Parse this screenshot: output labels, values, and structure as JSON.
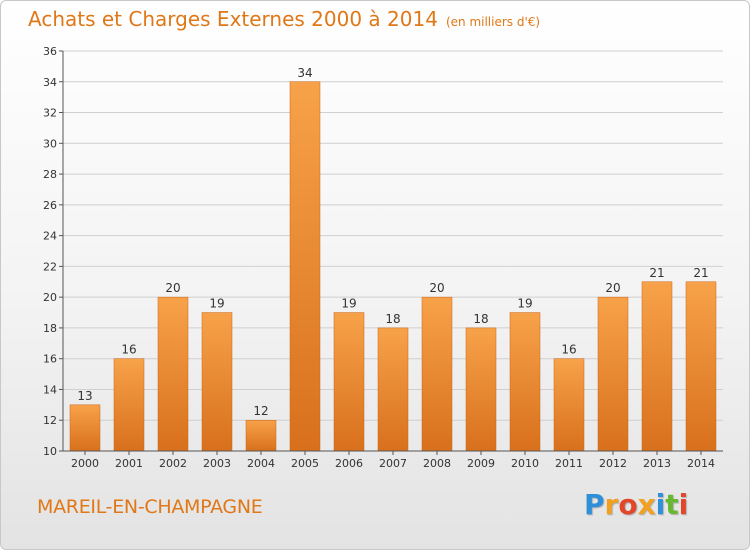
{
  "header": {
    "title": "Achats et Charges Externes 2000 à 2014",
    "unit": "(en milliers d'€)"
  },
  "footer": {
    "commune": "MAREIL-EN-CHAMPAGNE",
    "logo_letters": [
      "P",
      "r",
      "o",
      "x",
      "i",
      "t",
      "i"
    ],
    "logo_colors": [
      "#2f8fd8",
      "#f2a020",
      "#e2472a",
      "#f2a020",
      "#2f8fd8",
      "#66b830",
      "#e2472a"
    ]
  },
  "chart_data": {
    "type": "bar",
    "title": "Achats et Charges Externes 2000 à 2014",
    "subtitle": "(en milliers d'€)",
    "xlabel": "",
    "ylabel": "",
    "categories": [
      "2000",
      "2001",
      "2002",
      "2003",
      "2004",
      "2005",
      "2006",
      "2007",
      "2008",
      "2009",
      "2010",
      "2011",
      "2012",
      "2013",
      "2014"
    ],
    "values": [
      13,
      16,
      20,
      19,
      12,
      34,
      19,
      18,
      20,
      18,
      19,
      16,
      20,
      21,
      21
    ],
    "ylim": [
      10,
      36
    ],
    "yticks": [
      10,
      12,
      14,
      16,
      18,
      20,
      22,
      24,
      26,
      28,
      30,
      32,
      34,
      36
    ],
    "grid": true,
    "legend": "none",
    "bar_color": "#f0882a"
  }
}
